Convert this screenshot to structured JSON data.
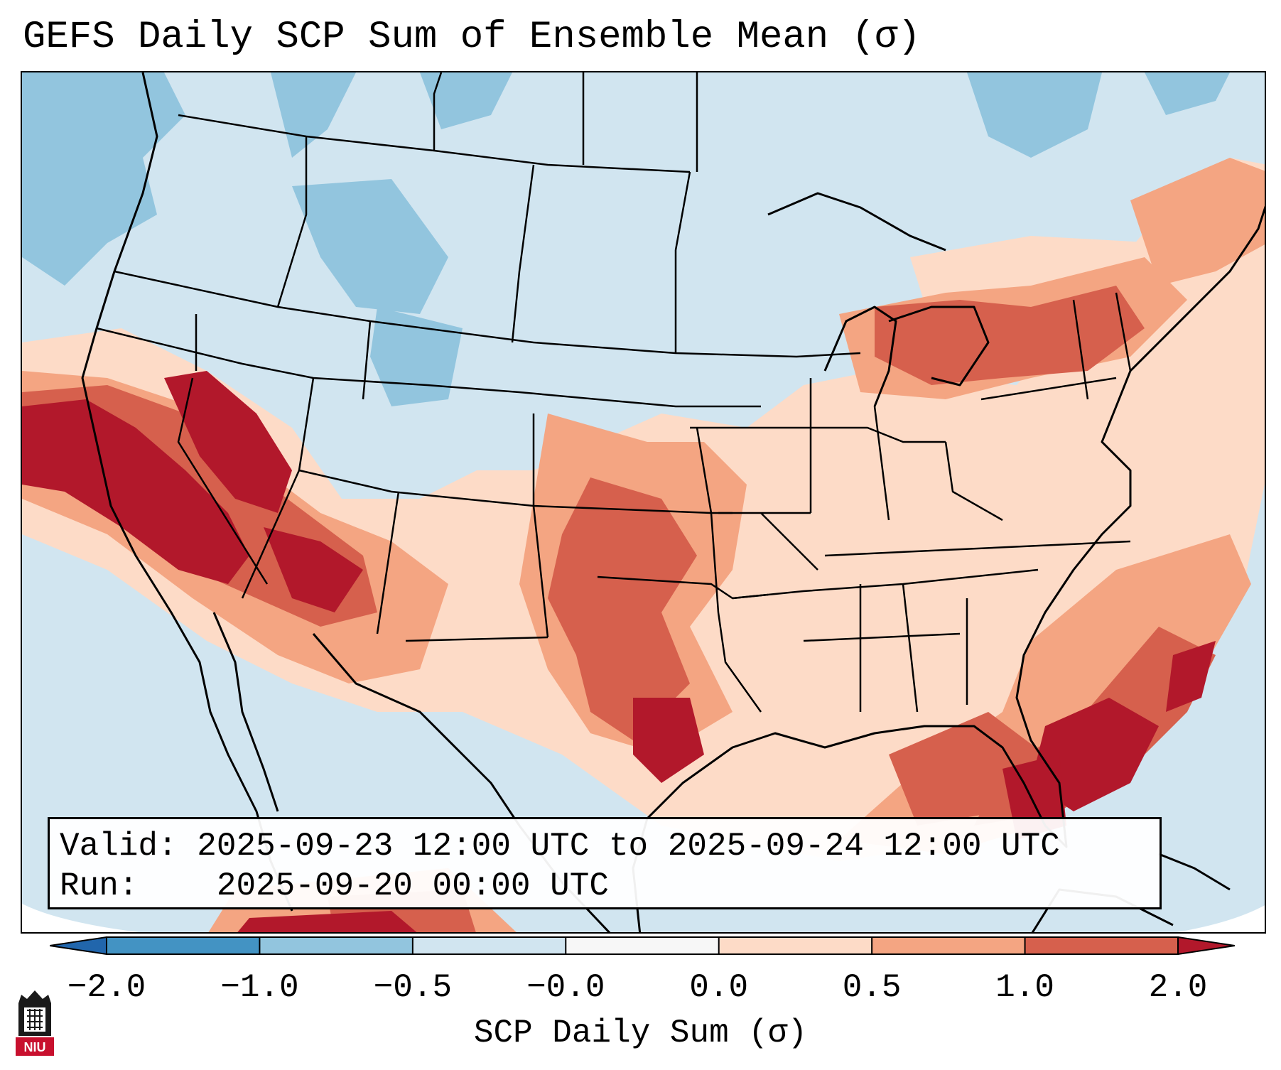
{
  "title": "GEFS Daily SCP Sum of Ensemble Mean (σ)",
  "info": {
    "valid_label": "Valid:",
    "valid_value": "2025-09-23 12:00 UTC to 2025-09-24 12:00 UTC",
    "run_label": "Run:",
    "run_value": "2025-09-20 00:00 UTC"
  },
  "colorbar": {
    "label": "SCP Daily Sum (σ)",
    "ticks": [
      "−2.0",
      "−1.0",
      "−0.5",
      "−0.0",
      "0.0",
      "0.5",
      "1.0",
      "2.0"
    ],
    "colors": [
      "#4393c3",
      "#92c5de",
      "#d1e5f0",
      "#f7f7f7",
      "#fddbc7",
      "#f4a582",
      "#d6604d",
      "#b2182b"
    ],
    "under_color": "#2166ac",
    "over_color": "#b2182b"
  },
  "map": {
    "region": "Continental United States",
    "background_class_color": "#d1e5f0",
    "logo_text": "NIU"
  }
}
